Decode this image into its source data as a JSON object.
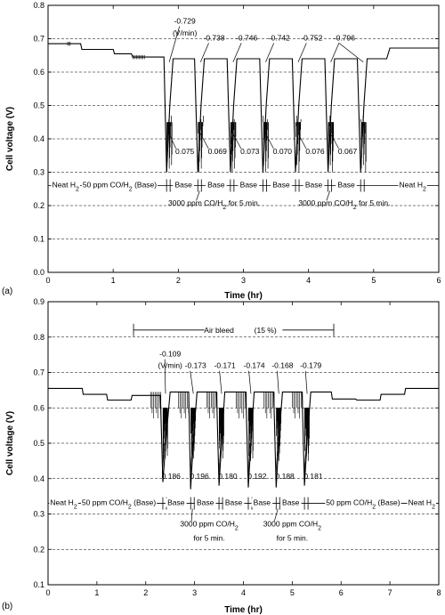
{
  "chart_data": [
    {
      "type": "line",
      "panel_label": "(a)",
      "xlabel": "Time (hr)",
      "ylabel": "Cell voltage (V)",
      "xlim": [
        0,
        6
      ],
      "ylim": [
        0,
        0.8
      ],
      "xticks": [
        "0",
        "1",
        "2",
        "3",
        "4",
        "5",
        "6"
      ],
      "yticks": [
        "0.0",
        "0.1",
        "0.2",
        "0.3",
        "0.4",
        "0.5",
        "0.6",
        "0.7",
        "0.8"
      ],
      "grid": "horizontal-dashed",
      "series": [
        {
          "x": [
            0.0,
            0.5,
            0.52,
            1.0,
            1.02,
            1.28,
            1.3,
            1.78,
            1.82,
            1.87,
            1.92,
            2.25,
            2.3,
            2.35,
            2.4,
            2.75,
            2.8,
            2.85,
            2.9,
            3.25,
            3.3,
            3.35,
            3.4,
            3.75,
            3.8,
            3.85,
            3.9,
            4.25,
            4.3,
            4.35,
            4.4,
            4.75,
            4.8,
            4.85,
            4.9,
            5.2,
            5.25,
            6.0
          ],
          "y": [
            0.685,
            0.685,
            0.668,
            0.668,
            0.655,
            0.655,
            0.645,
            0.645,
            0.3,
            0.5,
            0.64,
            0.64,
            0.3,
            0.5,
            0.64,
            0.64,
            0.3,
            0.5,
            0.64,
            0.64,
            0.3,
            0.5,
            0.64,
            0.64,
            0.3,
            0.5,
            0.64,
            0.64,
            0.3,
            0.5,
            0.64,
            0.64,
            0.3,
            0.5,
            0.64,
            0.64,
            0.672,
            0.672
          ]
        }
      ],
      "dip_times": [
        1.82,
        2.3,
        2.8,
        3.3,
        3.8,
        4.3,
        4.8
      ],
      "rates": [
        {
          "text": "-0.729",
          "x": 2.1,
          "y": 0.745
        },
        {
          "text": "(V/min)",
          "x": 2.1,
          "y": 0.71
        },
        {
          "text": "-0.738",
          "x": 2.55,
          "y": 0.695
        },
        {
          "text": "-0.746",
          "x": 3.05,
          "y": 0.695
        },
        {
          "text": "-0.742",
          "x": 3.55,
          "y": 0.695
        },
        {
          "text": "-0.752",
          "x": 4.05,
          "y": 0.695
        },
        {
          "text": "-0.796",
          "x": 4.55,
          "y": 0.695
        }
      ],
      "minimums": [
        {
          "text": "0.075",
          "x": 2.1,
          "y": 0.355
        },
        {
          "text": "0.069",
          "x": 2.6,
          "y": 0.355
        },
        {
          "text": "0.073",
          "x": 3.1,
          "y": 0.355
        },
        {
          "text": "0.070",
          "x": 3.6,
          "y": 0.355
        },
        {
          "text": "0.076",
          "x": 4.1,
          "y": 0.355
        },
        {
          "text": "0.067",
          "x": 4.6,
          "y": 0.355
        }
      ],
      "gas_row_y": 0.26,
      "segments": [
        {
          "text": "Neat H",
          "sub": "2",
          "x": 0.27
        },
        {
          "text": "50 ppm CO/H",
          "sub": "2",
          "tail": " (Base)",
          "x": 1.1
        },
        {
          "text": "Base",
          "x": 2.08
        },
        {
          "text": "Base",
          "x": 2.58
        },
        {
          "text": "Base",
          "x": 3.08
        },
        {
          "text": "Base",
          "x": 3.58
        },
        {
          "text": "Base",
          "x": 4.08
        },
        {
          "text": "Base",
          "x": 4.58
        },
        {
          "text": "Neat H",
          "sub": "2",
          "x": 5.6
        }
      ],
      "notes": [
        {
          "text": "3000 ppm CO/H",
          "sub": "2",
          "tail": " for 5 min.",
          "x": 2.55,
          "y": 0.2
        },
        {
          "text": "3000 ppm CO/H",
          "sub": "2",
          "tail": " for 5 min.",
          "x": 4.55,
          "y": 0.2
        }
      ]
    },
    {
      "type": "line",
      "panel_label": "(b)",
      "xlabel": "Time (hr)",
      "ylabel": "Cell voltage (V)",
      "xlim": [
        0,
        8
      ],
      "ylim": [
        0.1,
        0.9
      ],
      "xticks": [
        "0",
        "1",
        "2",
        "3",
        "4",
        "5",
        "6",
        "7",
        "8"
      ],
      "yticks": [
        "0.1",
        "0.2",
        "0.3",
        "0.4",
        "0.5",
        "0.6",
        "0.7",
        "0.8",
        "0.9"
      ],
      "grid": "horizontal-dashed",
      "series": [
        {
          "x": [
            0.0,
            0.7,
            0.72,
            1.2,
            1.22,
            1.7,
            1.72,
            2.3,
            2.35,
            2.42,
            2.5,
            2.88,
            2.92,
            2.98,
            3.05,
            3.45,
            3.5,
            3.56,
            3.62,
            4.05,
            4.1,
            4.16,
            4.22,
            4.62,
            4.67,
            4.73,
            4.8,
            5.2,
            5.25,
            5.31,
            5.38,
            5.8,
            5.82,
            6.3,
            6.32,
            6.8,
            6.82,
            7.3,
            7.32,
            8.0
          ],
          "y": [
            0.655,
            0.655,
            0.638,
            0.638,
            0.622,
            0.622,
            0.635,
            0.635,
            0.39,
            0.52,
            0.645,
            0.645,
            0.37,
            0.52,
            0.645,
            0.645,
            0.38,
            0.52,
            0.645,
            0.645,
            0.375,
            0.52,
            0.645,
            0.645,
            0.375,
            0.52,
            0.645,
            0.645,
            0.38,
            0.52,
            0.645,
            0.645,
            0.625,
            0.625,
            0.622,
            0.622,
            0.638,
            0.638,
            0.655,
            0.655
          ]
        }
      ],
      "dip_times": [
        2.35,
        2.92,
        3.5,
        4.1,
        4.67,
        5.25
      ],
      "bleed": {
        "label": "Air bleed",
        "pct": "(15 %)",
        "x0": 1.75,
        "x1": 5.85,
        "y": 0.82
      },
      "rates": [
        {
          "text": "-0.109",
          "x": 2.5,
          "y": 0.745
        },
        {
          "text": "(V/min)",
          "x": 2.5,
          "y": 0.712
        },
        {
          "text": "-0.173",
          "x": 3.02,
          "y": 0.712
        },
        {
          "text": "-0.171",
          "x": 3.62,
          "y": 0.712
        },
        {
          "text": "-0.174",
          "x": 4.22,
          "y": 0.712
        },
        {
          "text": "-0.168",
          "x": 4.8,
          "y": 0.712
        },
        {
          "text": "-0.179",
          "x": 5.38,
          "y": 0.712
        }
      ],
      "minimums": [
        {
          "text": "0.186",
          "x": 2.52,
          "y": 0.4
        },
        {
          "text": "0.196",
          "x": 3.1,
          "y": 0.4
        },
        {
          "text": "0.180",
          "x": 3.68,
          "y": 0.4
        },
        {
          "text": "0.192",
          "x": 4.28,
          "y": 0.4
        },
        {
          "text": "0.188",
          "x": 4.85,
          "y": 0.4
        },
        {
          "text": "0.181",
          "x": 5.43,
          "y": 0.4
        }
      ],
      "gas_row_y": 0.33,
      "segments": [
        {
          "text": "Neat H",
          "sub": "2",
          "x": 0.32
        },
        {
          "text": "50 ppm CO/H",
          "sub": "2",
          "tail": " (Base)",
          "x": 1.45
        },
        {
          "text": "Base",
          "x": 2.62
        },
        {
          "text": "Base",
          "x": 3.22
        },
        {
          "text": "Base",
          "x": 3.8
        },
        {
          "text": "Base",
          "x": 4.38
        },
        {
          "text": "Base",
          "x": 4.97
        },
        {
          "text": "50 ppm CO/H",
          "sub": "2",
          "tail": " (Base)",
          "x": 6.45
        },
        {
          "text": "Neat H",
          "sub": "2",
          "x": 7.65
        }
      ],
      "notes": [
        {
          "text": "3000 ppm CO/H",
          "sub": "2",
          "x": 3.3,
          "y": 0.265
        },
        {
          "text": "for 5 min.",
          "x": 3.3,
          "y": 0.225
        },
        {
          "text": "3000 ppm CO/H",
          "sub": "2",
          "x": 5.0,
          "y": 0.265
        },
        {
          "text": "for 5 min.",
          "x": 5.0,
          "y": 0.225
        }
      ]
    }
  ]
}
